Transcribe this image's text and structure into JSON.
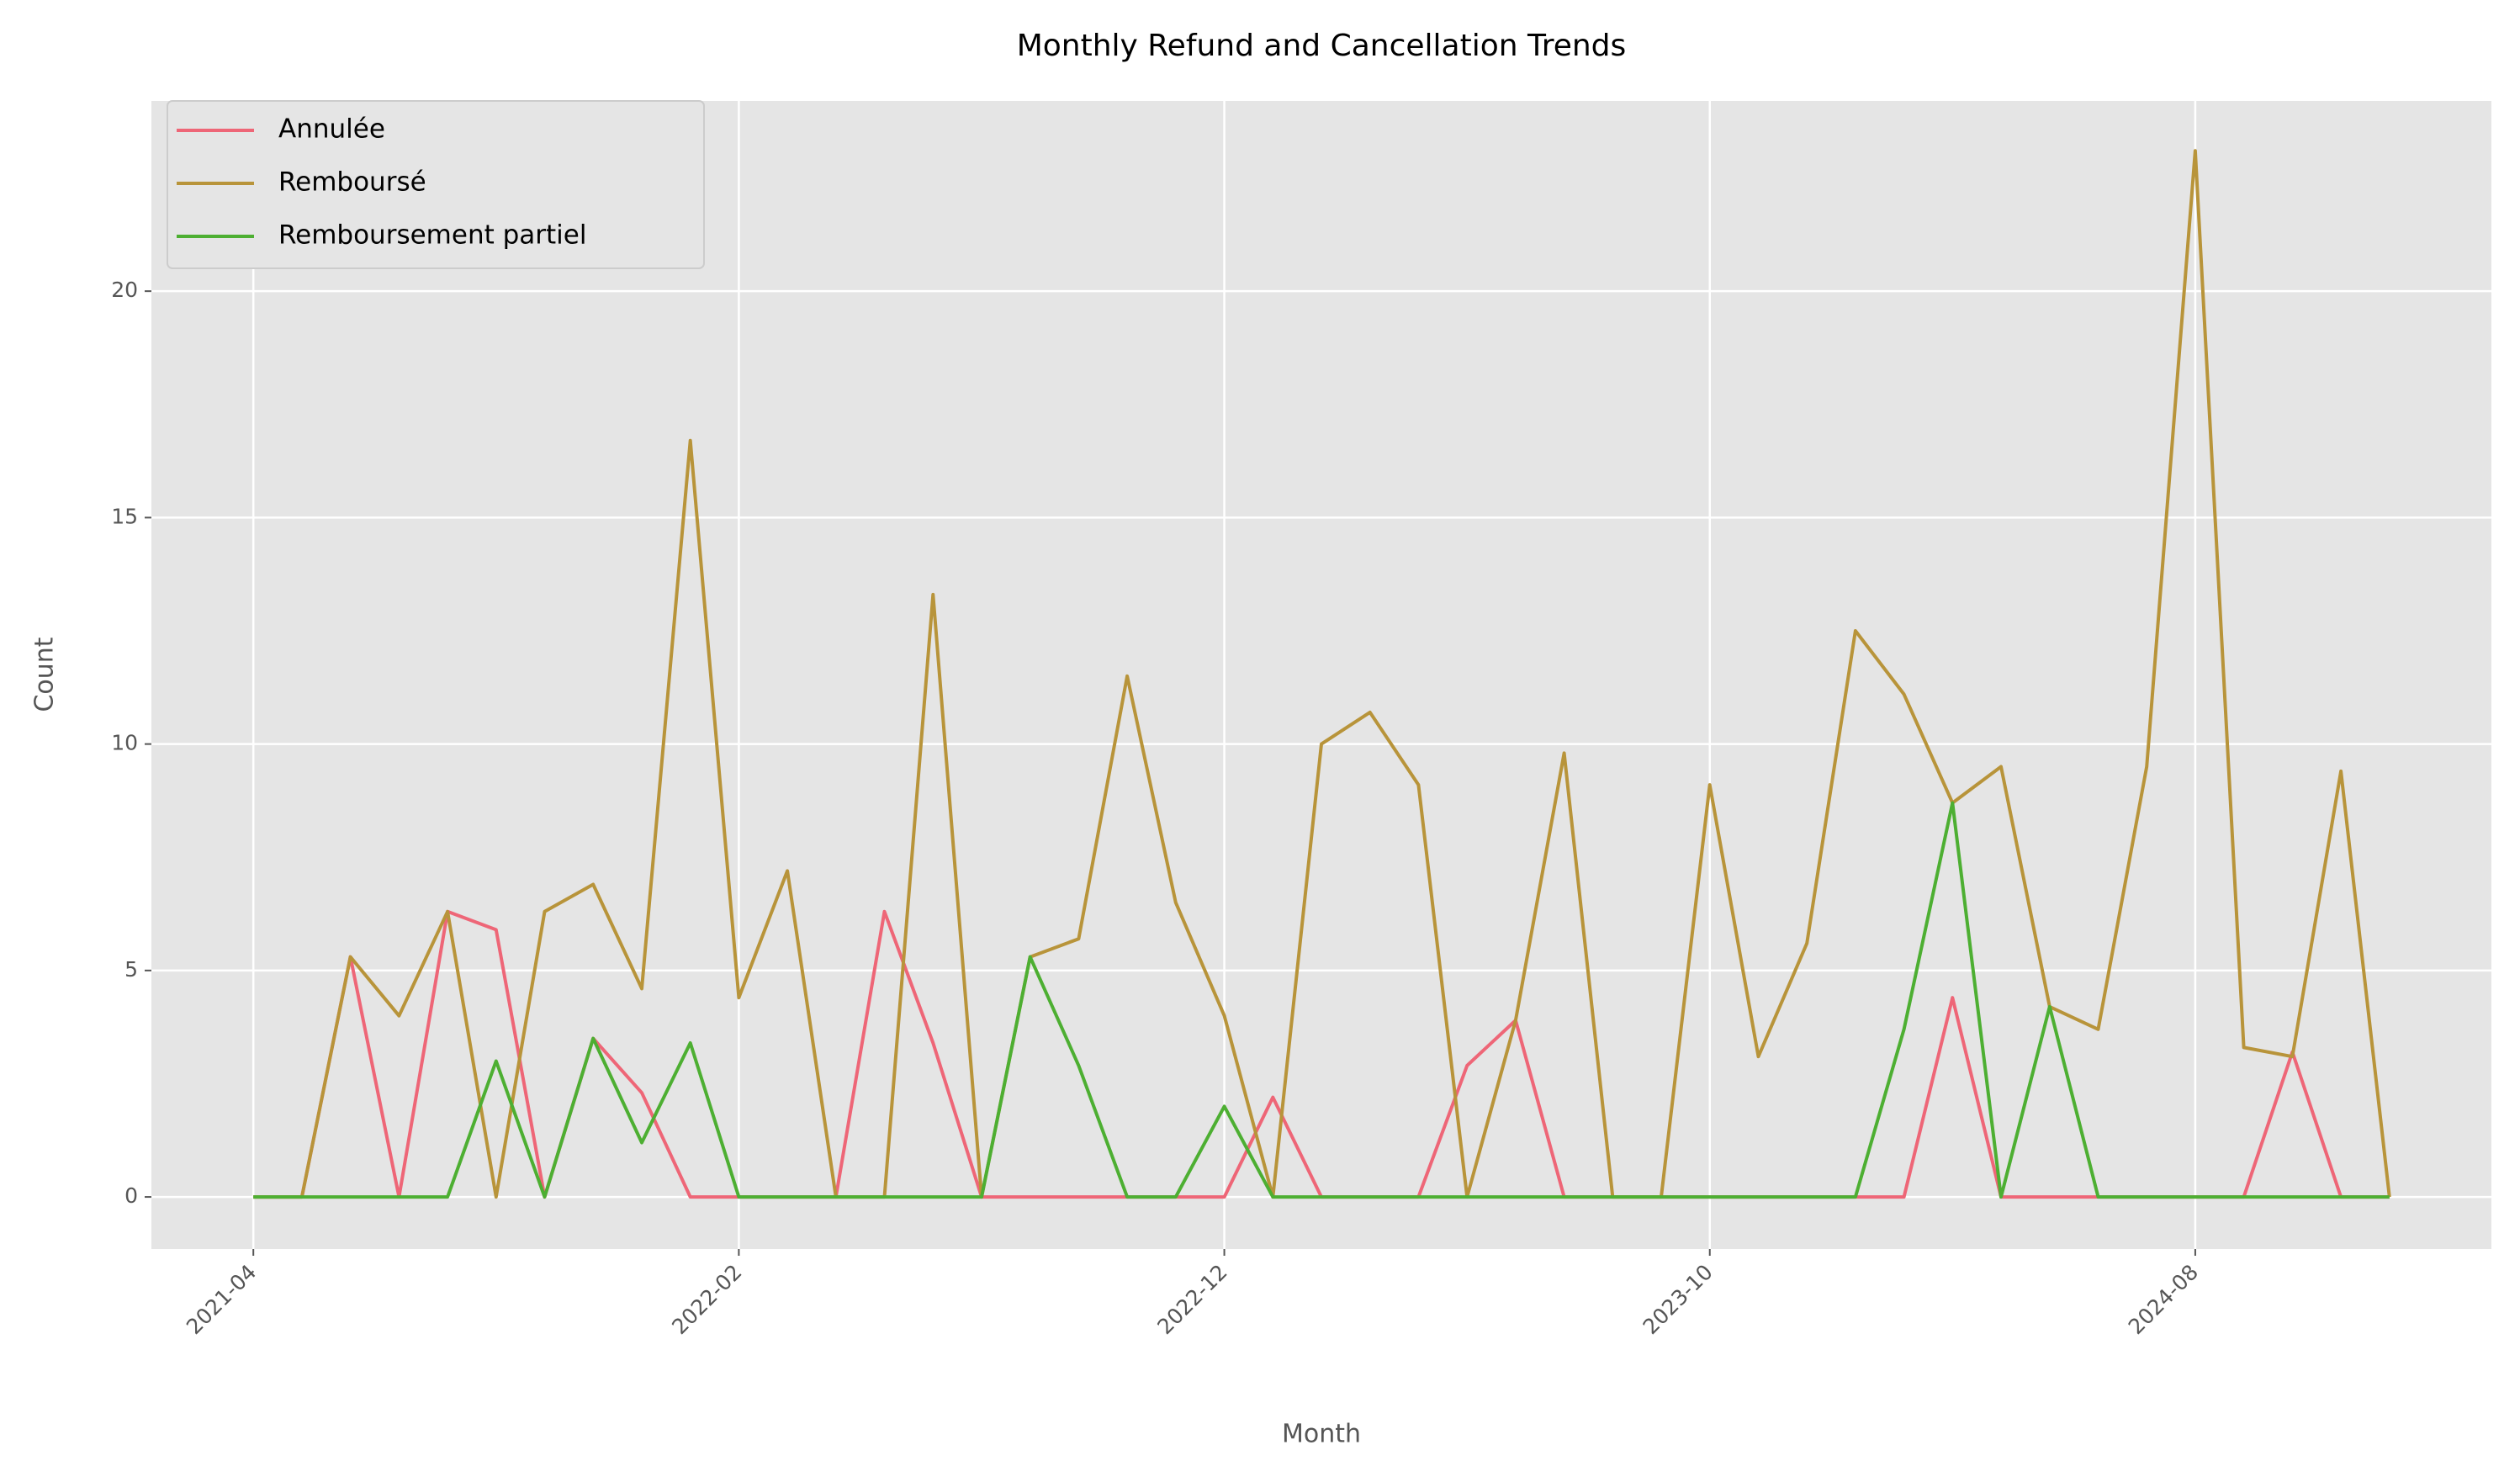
{
  "chart_data": {
    "type": "line",
    "title": "Monthly Refund and Cancellation Trends",
    "xlabel": "Month",
    "ylabel": "Count",
    "x": [
      "2021-04",
      "2021-05",
      "2021-06",
      "2021-07",
      "2021-08",
      "2021-09",
      "2021-10",
      "2021-11",
      "2021-12",
      "2022-01",
      "2022-02",
      "2022-03",
      "2022-04",
      "2022-05",
      "2022-06",
      "2022-07",
      "2022-08",
      "2022-09",
      "2022-10",
      "2022-11",
      "2022-12",
      "2023-01",
      "2023-02",
      "2023-03",
      "2023-04",
      "2023-05",
      "2023-06",
      "2023-07",
      "2023-08",
      "2023-09",
      "2023-10",
      "2023-11",
      "2023-12",
      "2024-01",
      "2024-02",
      "2024-03",
      "2024-04",
      "2024-05",
      "2024-06",
      "2024-07",
      "2024-08",
      "2024-09",
      "2024-10",
      "2024-11",
      "2024-12"
    ],
    "xticks": [
      "2021-04",
      "2022-02",
      "2022-12",
      "2023-10",
      "2024-08"
    ],
    "ylim": [
      -1.15,
      24.2
    ],
    "yticks": [
      0,
      5,
      10,
      15,
      20
    ],
    "grid": true,
    "legend": "upper left",
    "series": [
      {
        "name": "Annulée",
        "color": "#ee6677",
        "values": [
          0,
          0,
          5.3,
          0,
          6.3,
          5.9,
          0,
          3.5,
          2.3,
          0,
          0,
          0,
          0,
          6.3,
          3.4,
          0,
          0,
          0,
          0,
          0,
          0,
          2.2,
          0,
          0,
          0,
          2.9,
          3.9,
          0,
          0,
          0,
          0,
          0,
          0,
          0,
          0,
          4.4,
          0,
          0,
          0,
          0,
          0,
          0,
          3.2,
          0,
          0
        ]
      },
      {
        "name": "Remboursé",
        "color": "#b8943a",
        "values": [
          0,
          0,
          5.3,
          4.0,
          6.3,
          0,
          6.3,
          6.9,
          4.6,
          16.7,
          4.4,
          7.2,
          0,
          0,
          13.3,
          0,
          5.3,
          5.7,
          11.5,
          6.5,
          4.0,
          0,
          10.0,
          10.7,
          9.1,
          0,
          3.9,
          9.8,
          0,
          0,
          9.1,
          3.1,
          5.6,
          12.5,
          11.1,
          8.7,
          9.5,
          4.2,
          3.7,
          9.5,
          23.1,
          3.3,
          3.1,
          9.4,
          0
        ]
      },
      {
        "name": "Remboursement partiel",
        "color": "#4daf32",
        "values": [
          0,
          0,
          0,
          0,
          0,
          3.0,
          0,
          3.5,
          1.2,
          3.4,
          0,
          0,
          0,
          0,
          0,
          0,
          5.3,
          2.9,
          0,
          0,
          2.0,
          0,
          0,
          0,
          0,
          0,
          0,
          0,
          0,
          0,
          0,
          0,
          0,
          0,
          3.7,
          8.7,
          0,
          4.2,
          0,
          0,
          0,
          0,
          0,
          0,
          0
        ]
      }
    ]
  }
}
